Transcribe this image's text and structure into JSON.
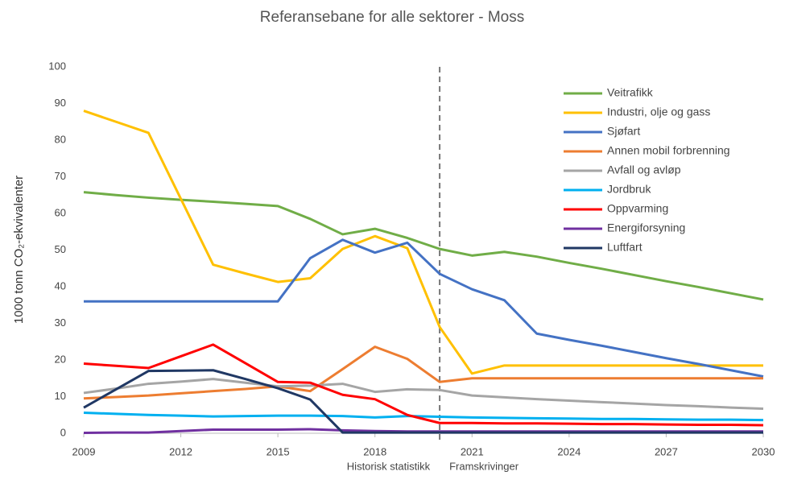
{
  "chart_data": {
    "type": "line",
    "title": "Referansebane for alle sektorer - Moss",
    "y_label": "1000 tonn CO₂-ekvivalenter",
    "x": [
      2009,
      2010,
      2011,
      2012,
      2013,
      2014,
      2015,
      2016,
      2017,
      2018,
      2019,
      2020,
      2021,
      2022,
      2023,
      2024,
      2025,
      2026,
      2027,
      2028,
      2029,
      2030
    ],
    "xlim": [
      2009,
      2030
    ],
    "xticks": [
      2009,
      2012,
      2015,
      2018,
      2021,
      2024,
      2027,
      2030
    ],
    "ylim": [
      0,
      100
    ],
    "yticks": [
      0,
      10,
      20,
      30,
      40,
      50,
      60,
      70,
      80,
      90,
      100
    ],
    "divider": {
      "x": 2020,
      "left_label": "Historisk statistikk",
      "right_label": "Framskrivinger"
    },
    "legend": "upper right",
    "series": [
      {
        "name": "Veitrafikk",
        "color": "#70ad47",
        "values": [
          65.8,
          65,
          64.3,
          63.7,
          63.2,
          62.6,
          62,
          58.5,
          54.3,
          55.8,
          53.3,
          50.3,
          48.5,
          49.5,
          48.2,
          46.5,
          44.9,
          43.2,
          41.5,
          39.9,
          38.2,
          36.5
        ]
      },
      {
        "name": "Industri, olje og gass",
        "color": "#ffc000",
        "values": [
          88,
          85,
          82,
          64,
          46,
          43.6,
          41.3,
          42.3,
          50.3,
          53.8,
          50.5,
          29,
          16.3,
          18.5,
          18.5,
          18.5,
          18.5,
          18.5,
          18.5,
          18.5,
          18.5,
          18.5
        ]
      },
      {
        "name": "Sjøfart",
        "color": "#4472c4",
        "values": [
          36,
          36,
          36,
          36,
          36,
          36,
          36,
          47.8,
          52.8,
          49.3,
          52,
          43.5,
          39.3,
          36.3,
          27.2,
          25.5,
          23.9,
          22.2,
          20.5,
          18.9,
          17.2,
          15.5
        ]
      },
      {
        "name": "Annen mobil forbrenning",
        "color": "#ed7d31",
        "values": [
          9.5,
          9.9,
          10.3,
          10.9,
          11.5,
          12.1,
          12.8,
          11.5,
          17.5,
          23.6,
          20.3,
          14,
          15,
          15,
          15,
          15,
          15,
          15,
          15,
          15,
          15,
          15
        ]
      },
      {
        "name": "Avfall og avløp",
        "color": "#a5a5a5",
        "values": [
          11,
          12.2,
          13.5,
          14.1,
          14.8,
          13.8,
          12.8,
          13,
          13.5,
          11.3,
          12,
          11.8,
          10.3,
          9.8,
          9.3,
          8.9,
          8.5,
          8.1,
          7.7,
          7.4,
          7,
          6.7
        ]
      },
      {
        "name": "Jordbruk",
        "color": "#00b0f0",
        "values": [
          5.6,
          5.3,
          5,
          4.8,
          4.6,
          4.7,
          4.8,
          4.8,
          4.7,
          4.3,
          4.7,
          4.5,
          4.3,
          4.2,
          4.1,
          4,
          3.9,
          3.9,
          3.8,
          3.7,
          3.7,
          3.6
        ]
      },
      {
        "name": "Oppvarming",
        "color": "#ff0000",
        "values": [
          19,
          18.4,
          17.8,
          21,
          24.2,
          19.1,
          14,
          13.8,
          10.5,
          9.3,
          5,
          2.8,
          2.8,
          2.7,
          2.7,
          2.6,
          2.5,
          2.5,
          2.4,
          2.3,
          2.3,
          2.2
        ]
      },
      {
        "name": "Energiforsyning",
        "color": "#7030a0",
        "values": [
          0.1,
          0.2,
          0.2,
          0.6,
          1,
          1,
          1,
          1.1,
          0.8,
          0.6,
          0.5,
          0.5,
          0.5,
          0.5,
          0.5,
          0.5,
          0.5,
          0.5,
          0.5,
          0.5,
          0.5,
          0.5
        ]
      },
      {
        "name": "Luftfart",
        "color": "#203864",
        "values": [
          7,
          12,
          17,
          17.1,
          17.2,
          14.8,
          12.3,
          9.2,
          0.2,
          0.2,
          0.2,
          0.2,
          0.2,
          0.2,
          0.2,
          0.2,
          0.2,
          0.2,
          0.2,
          0.2,
          0.2,
          0.2
        ]
      }
    ]
  }
}
